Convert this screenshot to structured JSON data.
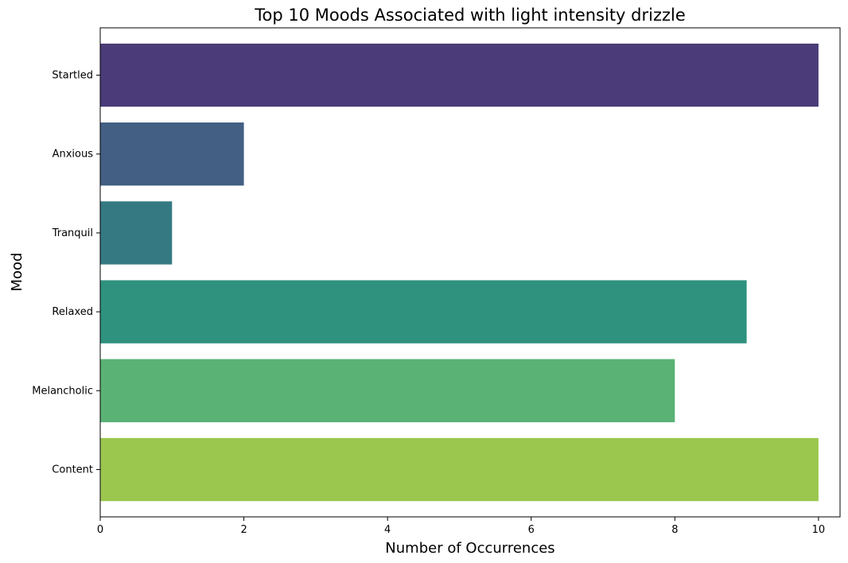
{
  "chart_data": {
    "type": "bar",
    "orientation": "horizontal",
    "title": "Top 10 Moods Associated with light intensity drizzle",
    "xlabel": "Number of Occurrences",
    "ylabel": "Mood",
    "categories": [
      "Startled",
      "Anxious",
      "Tranquil",
      "Relaxed",
      "Melancholic",
      "Content"
    ],
    "values": [
      10,
      2,
      1,
      9,
      8,
      10
    ],
    "colors": [
      "#4b3b78",
      "#435f83",
      "#357a82",
      "#2f927e",
      "#5ab275",
      "#9bc74e"
    ],
    "xlim": [
      0,
      10.3
    ],
    "xticks": [
      0,
      2,
      4,
      6,
      8,
      10
    ],
    "grid": false,
    "legend": false
  }
}
